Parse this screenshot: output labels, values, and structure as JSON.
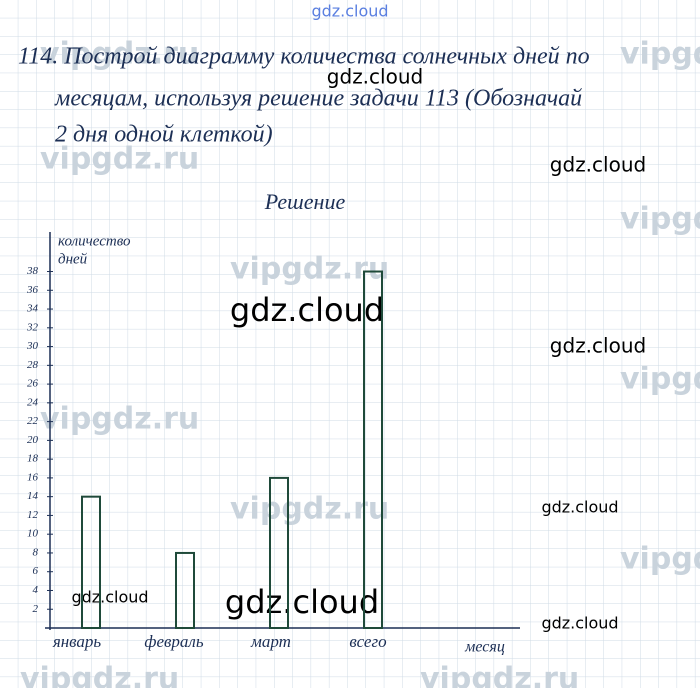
{
  "chart_data": {
    "type": "bar",
    "problem": [
      "114. Построй диаграмму количества солнечных дней по",
      "месяцам, используя решение задачи 113 (Обозначай",
      "2 дня одной клеткой)"
    ],
    "title": "Решение",
    "ylabel": [
      "количество",
      "дней"
    ],
    "xlabel": "месяц",
    "categories": [
      "январь",
      "февраль",
      "март",
      "всего"
    ],
    "values": [
      14,
      8,
      16,
      38
    ],
    "color": "#1f4a3a",
    "ylim": [
      0,
      42
    ],
    "yticks": [
      2,
      4,
      6,
      8,
      10,
      12,
      14,
      16,
      18,
      20,
      22,
      24,
      26,
      28,
      30,
      32,
      34,
      36,
      38
    ]
  },
  "watermarks": [
    "gdz.cloud",
    "vipgdz.ru"
  ]
}
